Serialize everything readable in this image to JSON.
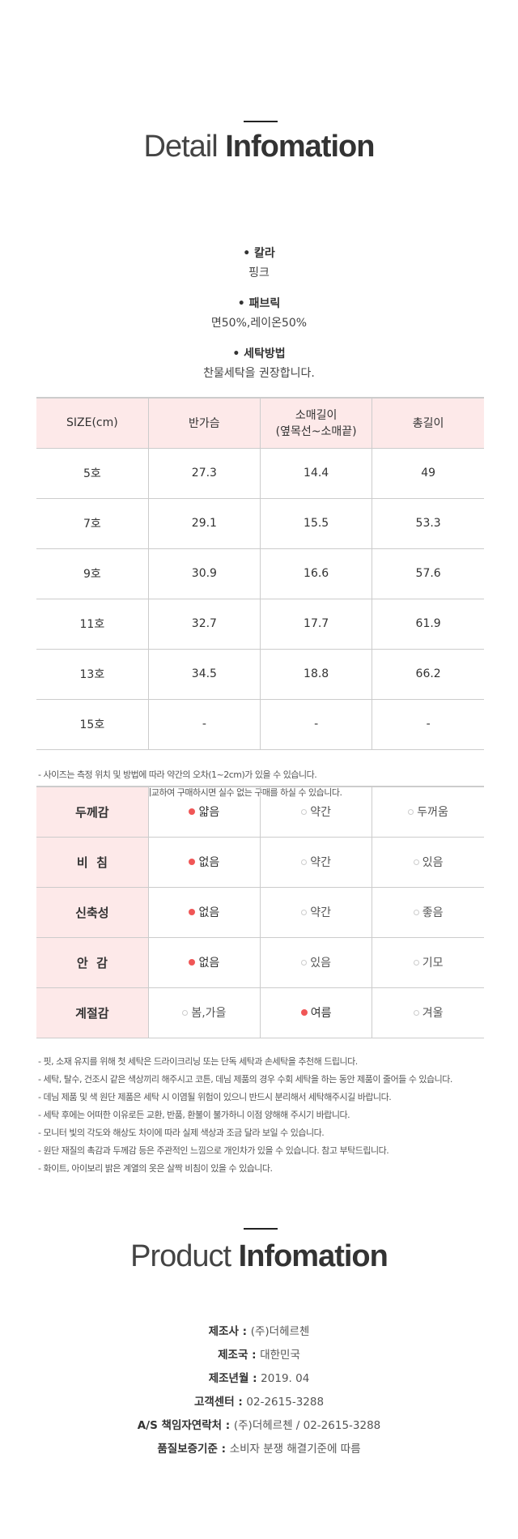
{
  "detail": {
    "title_light": "Detail",
    "title_bold": "Infomation",
    "specs": [
      {
        "label": "칼라",
        "value": "핑크"
      },
      {
        "label": "패브릭",
        "value": "면50%,레이온50%"
      },
      {
        "label": "세탁방법",
        "value": "찬물세탁을 권장합니다."
      }
    ]
  },
  "size_table": {
    "headers": [
      "SIZE(cm)",
      "반가슴",
      "소매길이\n(옆목선~소매끝)",
      "총길이"
    ],
    "header_sleeve_line1": "소매길이",
    "header_sleeve_line2": "(옆목선~소매끝)",
    "rows": [
      [
        "5호",
        "27.3",
        "14.4",
        "49"
      ],
      [
        "7호",
        "29.1",
        "15.5",
        "53.3"
      ],
      [
        "9호",
        "30.9",
        "16.6",
        "57.6"
      ],
      [
        "11호",
        "32.7",
        "17.7",
        "61.9"
      ],
      [
        "13호",
        "34.5",
        "18.8",
        "66.2"
      ],
      [
        "15호",
        "-",
        "-",
        "-"
      ]
    ],
    "notes": [
      "- 사이즈는 측정 위치 및 방법에 따라 약간의 오차(1~2cm)가 있을 수 있습니다.",
      "- 실제 입고 있는 옷을 측정 후 비교하여 구매하시면 실수 없는 구매를 하실 수 있습니다."
    ]
  },
  "feel_table": {
    "accent_color": "#f05656",
    "header_bg": "#fde9e9",
    "rows": [
      {
        "label": "두께감",
        "options": [
          "얇음",
          "약간",
          "두꺼움"
        ],
        "selected": 0
      },
      {
        "label": "비  침",
        "options": [
          "없음",
          "약간",
          "있음"
        ],
        "selected": 0
      },
      {
        "label": "신축성",
        "options": [
          "없음",
          "약간",
          "좋음"
        ],
        "selected": 0
      },
      {
        "label": "안  감",
        "options": [
          "없음",
          "있음",
          "기모"
        ],
        "selected": 0
      },
      {
        "label": "계절감",
        "options": [
          "봄,가을",
          "여름",
          "겨울"
        ],
        "selected": 1
      }
    ],
    "notes": [
      "- 핏, 소재 유지를 위해 첫 세탁은 드라이크리닝 또는 단독 세탁과 손세탁을 추천해 드립니다.",
      "- 세탁, 탈수, 건조시 같은 색상끼리 해주시고 코튼, 데님 제품의 경우 수회 세탁을 하는 동안 제품이 줄어들 수 있습니다.",
      "- 데님 제품 및 색 원단 제품은 세탁 시 이염될 위험이 있으니 반드시 분리해서 세탁해주시길 바랍니다.",
      "- 세탁 후에는 어떠한 이유로든 교환, 반품, 환불이 불가하니 이점 양해해 주시기 바랍니다.",
      "- 모니터 빛의 각도와 해상도 차이에 따라 실제 색상과 조금 달라 보일 수 있습니다.",
      "- 원단 재질의 촉감과 두께감 등은 주관적인 느낌으로 개인차가 있을 수 있습니다. 참고 부탁드립니다.",
      "- 화이트, 아이보리 밝은 계열의 옷은 살짝 비침이 있을 수 있습니다."
    ]
  },
  "product": {
    "title_light": "Product",
    "title_bold": "Infomation",
    "rows": [
      {
        "label": "제조사 : ",
        "value": "(주)더헤르첸"
      },
      {
        "label": "제조국 : ",
        "value": "대한민국"
      },
      {
        "label": "제조년월 : ",
        "value": "2019. 04"
      },
      {
        "label": "고객센터 : ",
        "value": "02-2615-3288"
      },
      {
        "label": "A/S 책임자연락처 : ",
        "value": "(주)더헤르첸 / 02-2615-3288"
      },
      {
        "label": "품질보증기준 : ",
        "value": "소비자 분쟁 해결기준에 따름"
      }
    ]
  }
}
